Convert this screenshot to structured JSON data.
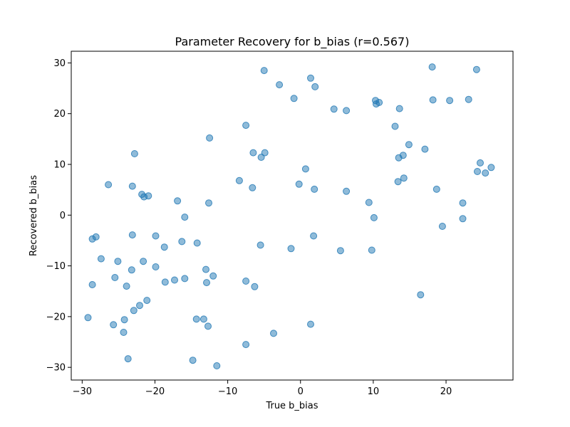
{
  "chart_data": {
    "type": "scatter",
    "title": "Parameter Recovery for b_bias (r=0.567)",
    "xlabel": "True b_bias",
    "ylabel": "Recovered b_bias",
    "xlim": [
      -31.5,
      29.2
    ],
    "ylim": [
      -32.5,
      32.3
    ],
    "xticks": [
      -30,
      -20,
      -10,
      0,
      10,
      20
    ],
    "yticks": [
      -30,
      -20,
      -10,
      0,
      10,
      20,
      30
    ],
    "grid": false,
    "color": "#1f77b4",
    "points": [
      [
        -5.0,
        28.5
      ],
      [
        1.4,
        27.0
      ],
      [
        -2.9,
        25.7
      ],
      [
        2.0,
        25.3
      ],
      [
        -0.9,
        23.0
      ],
      [
        4.6,
        20.9
      ],
      [
        6.3,
        20.6
      ],
      [
        10.3,
        22.6
      ],
      [
        10.4,
        21.9
      ],
      [
        10.8,
        22.2
      ],
      [
        13.6,
        21.0
      ],
      [
        18.1,
        29.2
      ],
      [
        18.2,
        22.7
      ],
      [
        20.5,
        22.6
      ],
      [
        23.1,
        22.8
      ],
      [
        24.2,
        28.7
      ],
      [
        -7.5,
        17.7
      ],
      [
        -12.5,
        15.2
      ],
      [
        13.0,
        17.5
      ],
      [
        14.9,
        13.9
      ],
      [
        17.1,
        13.0
      ],
      [
        -22.8,
        12.1
      ],
      [
        -6.5,
        12.3
      ],
      [
        -4.9,
        12.3
      ],
      [
        -5.4,
        11.4
      ],
      [
        13.5,
        11.3
      ],
      [
        14.1,
        11.8
      ],
      [
        24.7,
        10.3
      ],
      [
        26.2,
        9.4
      ],
      [
        24.3,
        8.6
      ],
      [
        25.4,
        8.3
      ],
      [
        0.7,
        9.1
      ],
      [
        -8.4,
        6.8
      ],
      [
        13.4,
        6.6
      ],
      [
        14.2,
        7.3
      ],
      [
        -26.4,
        6.0
      ],
      [
        -23.1,
        5.7
      ],
      [
        -6.6,
        5.4
      ],
      [
        -0.2,
        6.1
      ],
      [
        1.9,
        5.1
      ],
      [
        6.3,
        4.7
      ],
      [
        18.7,
        5.1
      ],
      [
        -21.8,
        4.1
      ],
      [
        -21.5,
        3.6
      ],
      [
        -20.9,
        3.8
      ],
      [
        -16.9,
        2.8
      ],
      [
        -12.6,
        2.4
      ],
      [
        9.4,
        2.5
      ],
      [
        22.3,
        2.4
      ],
      [
        -15.9,
        -0.4
      ],
      [
        10.1,
        -0.5
      ],
      [
        22.3,
        -0.7
      ],
      [
        -28.6,
        -4.7
      ],
      [
        -28.1,
        -4.3
      ],
      [
        -23.1,
        -3.9
      ],
      [
        -19.9,
        -4.1
      ],
      [
        -16.3,
        -5.2
      ],
      [
        -14.2,
        -5.5
      ],
      [
        1.8,
        -4.1
      ],
      [
        19.5,
        -2.2
      ],
      [
        -18.7,
        -6.3
      ],
      [
        -5.5,
        -5.9
      ],
      [
        -1.3,
        -6.6
      ],
      [
        5.5,
        -7.0
      ],
      [
        9.8,
        -6.9
      ],
      [
        -27.4,
        -8.6
      ],
      [
        -25.1,
        -9.1
      ],
      [
        -21.6,
        -9.1
      ],
      [
        -23.2,
        -10.8
      ],
      [
        -19.9,
        -10.2
      ],
      [
        -13.0,
        -10.7
      ],
      [
        -25.5,
        -12.3
      ],
      [
        -18.6,
        -13.2
      ],
      [
        -17.3,
        -12.8
      ],
      [
        -15.9,
        -12.5
      ],
      [
        -12.0,
        -12.0
      ],
      [
        -12.9,
        -13.3
      ],
      [
        -28.6,
        -13.7
      ],
      [
        -23.9,
        -14.0
      ],
      [
        -7.5,
        -13.0
      ],
      [
        -6.3,
        -14.1
      ],
      [
        16.5,
        -15.7
      ],
      [
        -21.1,
        -16.8
      ],
      [
        -22.1,
        -17.8
      ],
      [
        -22.9,
        -18.8
      ],
      [
        -29.2,
        -20.2
      ],
      [
        -24.2,
        -20.6
      ],
      [
        -14.3,
        -20.5
      ],
      [
        -13.3,
        -20.5
      ],
      [
        -12.7,
        -21.9
      ],
      [
        -25.7,
        -21.6
      ],
      [
        -24.3,
        -23.1
      ],
      [
        1.4,
        -21.5
      ],
      [
        -3.7,
        -23.3
      ],
      [
        -7.5,
        -25.5
      ],
      [
        -23.7,
        -28.3
      ],
      [
        -14.8,
        -28.6
      ],
      [
        -11.5,
        -29.7
      ]
    ]
  }
}
